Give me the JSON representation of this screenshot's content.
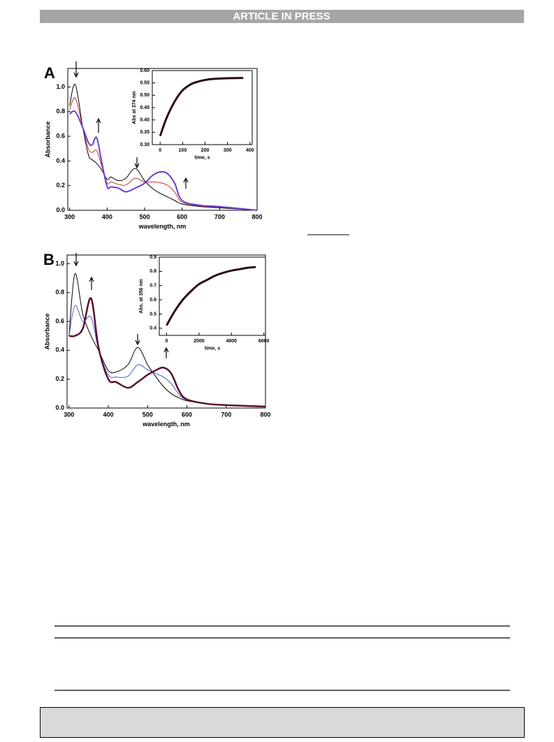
{
  "header": {
    "title": "ARTICLE IN PRESS"
  },
  "chart_data": [
    {
      "type": "line",
      "panel_label": "A",
      "xlabel": "wavelength, nm",
      "ylabel": "Absorbance",
      "x": [
        300,
        315,
        335,
        350,
        360,
        372,
        385,
        400,
        410,
        430,
        450,
        475,
        500,
        520,
        540,
        560,
        580,
        600,
        650,
        700,
        800
      ],
      "series": [
        {
          "color": "#000000",
          "values": [
            0.85,
            1.02,
            0.67,
            0.45,
            0.41,
            0.38,
            0.33,
            0.25,
            0.27,
            0.24,
            0.26,
            0.34,
            0.24,
            0.18,
            0.14,
            0.11,
            0.08,
            0.05,
            0.03,
            0.02,
            0.0
          ]
        },
        {
          "color": "#c0392b",
          "values": [
            0.815,
            0.91,
            0.67,
            0.5,
            0.47,
            0.485,
            0.365,
            0.22,
            0.23,
            0.21,
            0.205,
            0.26,
            0.23,
            0.23,
            0.225,
            0.205,
            0.15,
            0.065,
            0.035,
            0.025,
            0.0
          ]
        },
        {
          "color": "#6a3fd0",
          "values": [
            0.78,
            0.8,
            0.67,
            0.55,
            0.53,
            0.59,
            0.4,
            0.19,
            0.19,
            0.18,
            0.15,
            0.18,
            0.22,
            0.28,
            0.31,
            0.3,
            0.22,
            0.08,
            0.04,
            0.03,
            0.0
          ]
        }
      ],
      "xlim": [
        295,
        800
      ],
      "ylim": [
        0,
        1.15
      ],
      "xticks": [
        300,
        400,
        500,
        600,
        700,
        800
      ],
      "yticks": [
        {
          "value": 0,
          "label": "0.0"
        },
        0.2,
        0.4,
        0.6,
        0.8,
        {
          "value": 1,
          "label": "1.0"
        }
      ]
    },
    {
      "type": "line",
      "xlabel": "time, s",
      "ylabel": "Abs at 374 nm",
      "x": [
        0,
        25,
        50,
        75,
        100,
        125,
        150,
        200,
        250,
        300,
        370
      ],
      "series": [
        {
          "color": "#2a0a10",
          "values": [
            0.335,
            0.4,
            0.45,
            0.49,
            0.52,
            0.538,
            0.55,
            0.562,
            0.567,
            0.569,
            0.57
          ]
        }
      ],
      "xlim": [
        -35,
        410
      ],
      "ylim": [
        0.3,
        0.6
      ],
      "xticks": [
        0,
        100,
        200,
        300,
        400
      ],
      "yticks": [
        {
          "value": 0.3,
          "label": "0.30"
        },
        0.35,
        {
          "value": 0.4,
          "label": "0.40"
        },
        0.45,
        {
          "value": 0.5,
          "label": "0.50"
        },
        0.55,
        {
          "value": 0.6,
          "label": "0.60"
        }
      ]
    },
    {
      "type": "line",
      "panel_label": "B",
      "xlabel": "wavelength, nm",
      "ylabel": "Absorbance",
      "x": [
        300,
        315,
        335,
        356,
        375,
        400,
        420,
        450,
        475,
        500,
        520,
        540,
        560,
        580,
        600,
        650,
        700,
        800
      ],
      "series": [
        {
          "color": "#000000",
          "values": [
            0.5,
            0.93,
            0.65,
            0.5,
            0.4,
            0.26,
            0.25,
            0.3,
            0.42,
            0.3,
            0.22,
            0.15,
            0.1,
            0.07,
            0.05,
            0.03,
            0.02,
            0.01
          ]
        },
        {
          "color": "#4a5bd6",
          "values": [
            0.5,
            0.71,
            0.6,
            0.63,
            0.41,
            0.23,
            0.215,
            0.22,
            0.3,
            0.265,
            0.24,
            0.215,
            0.17,
            0.095,
            0.055,
            0.03,
            0.02,
            0.01
          ]
        },
        {
          "color": "#5a1030",
          "values": [
            0.5,
            0.5,
            0.55,
            0.76,
            0.42,
            0.2,
            0.18,
            0.14,
            0.18,
            0.23,
            0.26,
            0.28,
            0.24,
            0.12,
            0.06,
            0.03,
            0.02,
            0.01
          ]
        }
      ],
      "xlim": [
        295,
        800
      ],
      "ylim": [
        0,
        1.06
      ],
      "xticks": [
        300,
        400,
        500,
        600,
        700,
        800
      ],
      "yticks": [
        {
          "value": 0,
          "label": "0.0"
        },
        0.2,
        0.4,
        0.6,
        0.8,
        {
          "value": 1,
          "label": "1.0"
        }
      ]
    },
    {
      "type": "line",
      "xlabel": "time, s",
      "ylabel": "Abs. at 356 nm",
      "x": [
        0,
        500,
        1000,
        1500,
        2000,
        2500,
        3000,
        3500,
        4000,
        4500,
        5000,
        5500
      ],
      "series": [
        {
          "color": "#2a0a10",
          "values": [
            0.42,
            0.52,
            0.6,
            0.66,
            0.71,
            0.74,
            0.77,
            0.79,
            0.805,
            0.815,
            0.825,
            0.83
          ]
        }
      ],
      "xlim": [
        -450,
        6100
      ],
      "ylim": [
        0.35,
        0.9
      ],
      "xticks": [
        0,
        2000,
        4000,
        6000
      ],
      "yticks": [
        0.4,
        0.5,
        0.6,
        0.7,
        0.8,
        0.9
      ]
    }
  ]
}
